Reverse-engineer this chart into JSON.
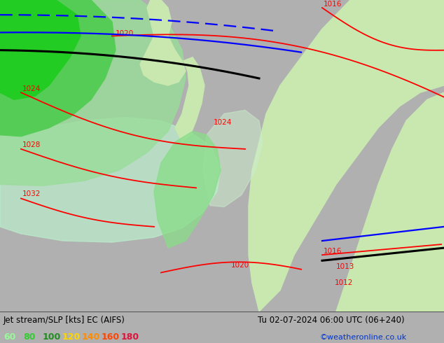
{
  "title_left": "Jet stream/SLP [kts] EC (AIFS)",
  "title_right": "Tu 02-07-2024 06:00 UTC (06+240)",
  "credit": "©weatheronline.co.uk",
  "legend_values": [
    "60",
    "80",
    "100",
    "120",
    "140",
    "160",
    "180"
  ],
  "legend_colors": [
    "#98fb98",
    "#32cd32",
    "#228b22",
    "#ffd700",
    "#ff8c00",
    "#ff4500",
    "#dc143c"
  ],
  "figsize": [
    6.34,
    4.9
  ],
  "dpi": 100,
  "bottom_bar_height": 0.092,
  "sea_color": "#d4d4d4",
  "land_color_right": "#c8e8b0",
  "land_color_left": "#90c890",
  "jet_green_bright": "#22cc22",
  "jet_green_light": "#aaddaa",
  "jet_green_lighter": "#cceedd"
}
